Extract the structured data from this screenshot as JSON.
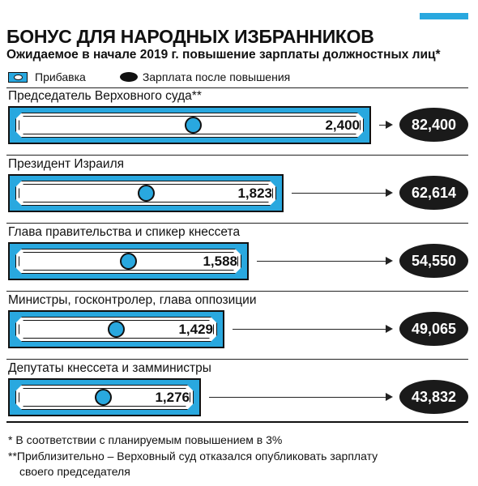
{
  "accent_color": "#29a8df",
  "title": "БОНУС ДЛЯ НАРОДНЫХ ИЗБРАННИКОВ",
  "subtitle": "Ожидаемое в начале 2019 г. повышение зарплаты должностных лиц*",
  "legend": {
    "raise": "Прибавка",
    "salary": "Зарплата после повышения"
  },
  "chart_data": {
    "type": "bar",
    "title": "БОНУС ДЛЯ НАРОДНЫХ ИЗБРАННИКОВ",
    "subtitle": "Ожидаемое в начале 2019 г. повышение зарплаты должностных лиц*",
    "categories": [
      "Председатель Верховного суда**",
      "Президент Израиля",
      "Глава правительства и спикер кнессета",
      "Министры, госконтролер, глава оппозиции",
      "Депутаты кнессета и замминистры"
    ],
    "series": [
      {
        "name": "Прибавка",
        "values": [
          2400,
          1823,
          1588,
          1429,
          1276
        ],
        "labels": [
          "2,400",
          "1,823",
          "1,588",
          "1,429",
          "1,276"
        ]
      },
      {
        "name": "Зарплата после повышения",
        "values": [
          82400,
          62614,
          54550,
          49065,
          43832
        ],
        "labels": [
          "82,400",
          "62,614",
          "54,550",
          "49,065",
          "43,832"
        ]
      }
    ]
  },
  "footnotes": [
    "*  В соответствии с планируемым повышением в 3%",
    "**Приблизительно – Верховный суд отказался опубликовать зарплату",
    "своего председателя"
  ]
}
